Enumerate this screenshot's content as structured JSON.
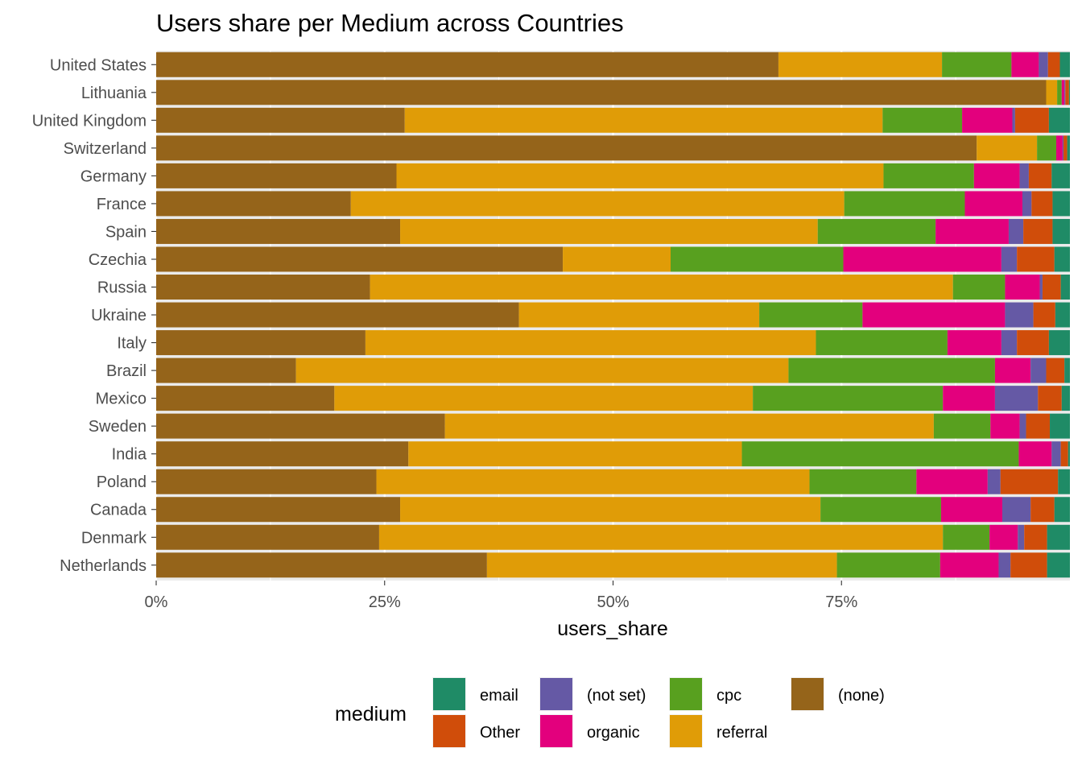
{
  "chart_data": {
    "type": "bar",
    "orientation": "horizontal",
    "stacked": true,
    "title": "Users share per Medium across Countries",
    "xlabel": "users_share",
    "ylabel": "",
    "xlim": [
      0,
      1
    ],
    "xticks": [
      0,
      0.25,
      0.5,
      0.75
    ],
    "xtick_labels": [
      "0%",
      "25%",
      "50%",
      "75%"
    ],
    "grid": true,
    "legend": {
      "title": "medium",
      "placement": "bottom",
      "entries": [
        "email",
        "Other",
        "(not set)",
        "organic",
        "cpc",
        "referral",
        "(none)"
      ]
    },
    "colors": {
      "(none)": "#95641a",
      "referral": "#e09c07",
      "cpc": "#58a01f",
      "organic": "#e3007d",
      "(not set)": "#6559a5",
      "Other": "#d04d0a",
      "email": "#1f8b66"
    },
    "stack_order": [
      "(none)",
      "referral",
      "cpc",
      "organic",
      "(not set)",
      "Other",
      "email"
    ],
    "categories": [
      "United States",
      "Lithuania",
      "United Kingdom",
      "Switzerland",
      "Germany",
      "France",
      "Spain",
      "Czechia",
      "Russia",
      "Ukraine",
      "Italy",
      "Brazil",
      "Mexico",
      "Sweden",
      "India",
      "Poland",
      "Canada",
      "Denmark",
      "Netherlands"
    ],
    "series": [
      {
        "name": "(none)",
        "values": [
          0.681,
          0.974,
          0.272,
          0.898,
          0.263,
          0.213,
          0.267,
          0.445,
          0.234,
          0.397,
          0.229,
          0.153,
          0.195,
          0.316,
          0.276,
          0.241,
          0.267,
          0.244,
          0.362
        ]
      },
      {
        "name": "referral",
        "values": [
          0.179,
          0.012,
          0.523,
          0.066,
          0.533,
          0.54,
          0.457,
          0.118,
          0.638,
          0.263,
          0.493,
          0.539,
          0.458,
          0.535,
          0.365,
          0.474,
          0.46,
          0.617,
          0.383
        ]
      },
      {
        "name": "cpc",
        "values": [
          0.076,
          0.005,
          0.087,
          0.021,
          0.099,
          0.132,
          0.129,
          0.189,
          0.057,
          0.113,
          0.144,
          0.226,
          0.208,
          0.062,
          0.303,
          0.117,
          0.132,
          0.051,
          0.113
        ]
      },
      {
        "name": "organic",
        "values": [
          0.03,
          0.003,
          0.055,
          0.007,
          0.05,
          0.063,
          0.08,
          0.173,
          0.038,
          0.156,
          0.059,
          0.039,
          0.057,
          0.032,
          0.036,
          0.078,
          0.067,
          0.031,
          0.064
        ]
      },
      {
        "name": "(not set)",
        "values": [
          0.01,
          0.001,
          0.003,
          0.001,
          0.01,
          0.01,
          0.016,
          0.017,
          0.003,
          0.031,
          0.017,
          0.017,
          0.047,
          0.007,
          0.01,
          0.014,
          0.031,
          0.007,
          0.013
        ]
      },
      {
        "name": "Other",
        "values": [
          0.013,
          0.004,
          0.037,
          0.004,
          0.025,
          0.023,
          0.032,
          0.041,
          0.02,
          0.024,
          0.035,
          0.02,
          0.026,
          0.026,
          0.008,
          0.063,
          0.026,
          0.025,
          0.04
        ]
      },
      {
        "name": "email",
        "values": [
          0.011,
          0.001,
          0.023,
          0.003,
          0.02,
          0.019,
          0.019,
          0.017,
          0.01,
          0.016,
          0.023,
          0.006,
          0.009,
          0.022,
          0.002,
          0.013,
          0.017,
          0.025,
          0.025
        ]
      }
    ]
  }
}
